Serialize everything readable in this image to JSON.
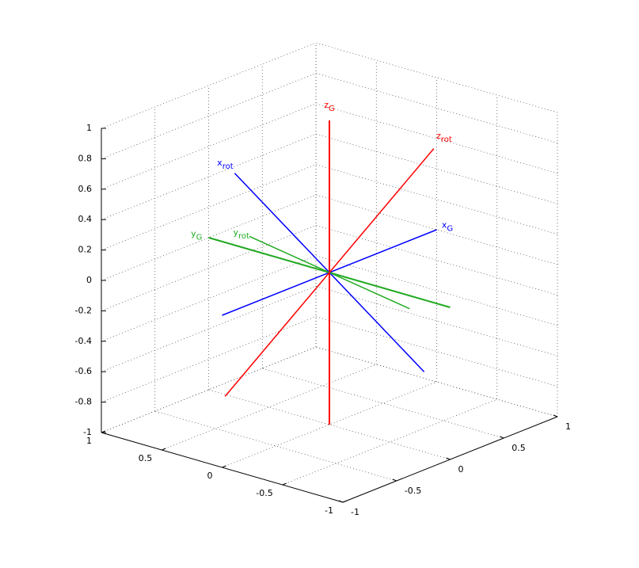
{
  "chart_data": {
    "type": "line3d",
    "xlim": [
      -1,
      1
    ],
    "ylim": [
      -1,
      1
    ],
    "zlim": [
      -1,
      1
    ],
    "xticks": [
      -1,
      -0.5,
      0,
      0.5,
      1
    ],
    "yticks": [
      -1,
      -0.5,
      0,
      0.5,
      1
    ],
    "zticks": [
      -1,
      -0.8,
      -0.6,
      -0.4,
      -0.2,
      0,
      0.2,
      0.4,
      0.6,
      0.8,
      1
    ],
    "grid": true,
    "series": [
      {
        "name": "x",
        "subscript": "G",
        "color": "#0000ff",
        "width": 1.5,
        "from": [
          -1,
          0,
          0
        ],
        "to": [
          1,
          0,
          0
        ]
      },
      {
        "name": "y",
        "subscript": "G",
        "color": "#22aa22",
        "width": 2,
        "from": [
          0,
          -1,
          0
        ],
        "to": [
          0,
          1,
          0
        ]
      },
      {
        "name": "z",
        "subscript": "G",
        "color": "#ff0000",
        "width": 2,
        "from": [
          0,
          0,
          -1
        ],
        "to": [
          0,
          0,
          1
        ]
      },
      {
        "name": "x",
        "subscript": "rot",
        "color": "#0000ff",
        "width": 1.5,
        "from": [
          -0.13,
          -0.9,
          -0.41
        ],
        "to": [
          0.13,
          0.9,
          0.41
        ]
      },
      {
        "name": "y",
        "subscript": "rot",
        "color": "#22aa22",
        "width": 1.5,
        "from": [
          0.865,
          0.105,
          -0.505
        ],
        "to": [
          -0.865,
          -0.105,
          0.505
        ]
      },
      {
        "name": "z",
        "subscript": "rot",
        "color": "#ff0000",
        "width": 1.5,
        "from": [
          -0.5,
          0.42,
          -0.77
        ],
        "to": [
          0.5,
          -0.42,
          0.77
        ]
      }
    ]
  }
}
